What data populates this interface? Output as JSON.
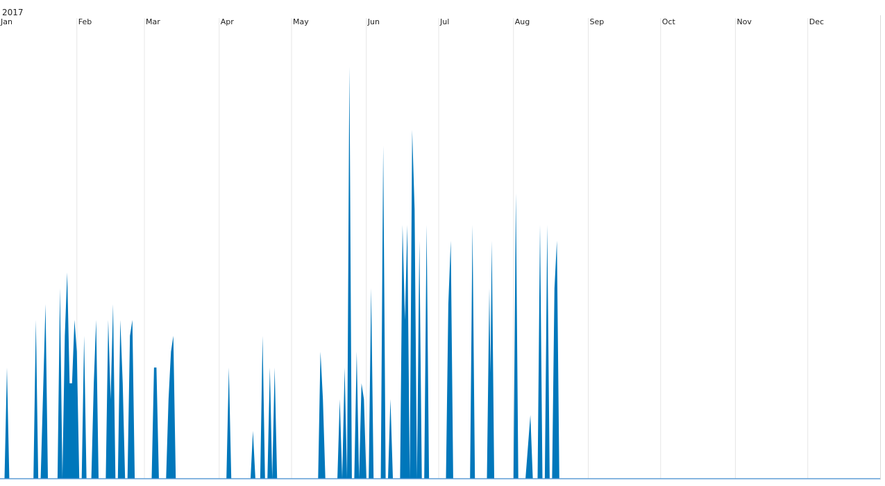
{
  "chart_data": {
    "type": "area",
    "title": "",
    "xlabel": "",
    "ylabel": "",
    "year_label": "2017",
    "x_tick_labels": [
      "Jan",
      "Feb",
      "Mar",
      "Apr",
      "May",
      "Jun",
      "Jul",
      "Aug",
      "Sep",
      "Oct",
      "Nov",
      "Dec"
    ],
    "x_range": [
      "2017-01-01",
      "2017-12-31"
    ],
    "ylim": [
      0,
      26
    ],
    "grid": "vertical-monthly",
    "legend": "none",
    "series": [
      {
        "color": "#0077bb",
        "points": [
          [
            "2017-01-02",
            0
          ],
          [
            "2017-01-03",
            7
          ],
          [
            "2017-01-04",
            0
          ],
          [
            "2017-01-14",
            0
          ],
          [
            "2017-01-15",
            10
          ],
          [
            "2017-01-16",
            0
          ],
          [
            "2017-01-17",
            0
          ],
          [
            "2017-01-19",
            11
          ],
          [
            "2017-01-20",
            0
          ],
          [
            "2017-01-24",
            0
          ],
          [
            "2017-01-25",
            12
          ],
          [
            "2017-01-26",
            0
          ],
          [
            "2017-01-26",
            0
          ],
          [
            "2017-01-27",
            9
          ],
          [
            "2017-01-28",
            13
          ],
          [
            "2017-01-29",
            6
          ],
          [
            "2017-01-30",
            6
          ],
          [
            "2017-01-31",
            10
          ],
          [
            "2017-02-01",
            8
          ],
          [
            "2017-02-02",
            0
          ],
          [
            "2017-02-03",
            0
          ],
          [
            "2017-02-04",
            9
          ],
          [
            "2017-02-05",
            0
          ],
          [
            "2017-02-07",
            0
          ],
          [
            "2017-02-08",
            6
          ],
          [
            "2017-02-09",
            10
          ],
          [
            "2017-02-10",
            0
          ],
          [
            "2017-02-13",
            0
          ],
          [
            "2017-02-14",
            10
          ],
          [
            "2017-02-15",
            5
          ],
          [
            "2017-02-16",
            11
          ],
          [
            "2017-02-17",
            0
          ],
          [
            "2017-02-18",
            0
          ],
          [
            "2017-02-19",
            10
          ],
          [
            "2017-02-20",
            6
          ],
          [
            "2017-02-21",
            0
          ],
          [
            "2017-02-22",
            0
          ],
          [
            "2017-02-23",
            9
          ],
          [
            "2017-02-24",
            10
          ],
          [
            "2017-02-25",
            0
          ],
          [
            "2017-03-04",
            0
          ],
          [
            "2017-03-05",
            7
          ],
          [
            "2017-03-06",
            7
          ],
          [
            "2017-03-07",
            0
          ],
          [
            "2017-03-10",
            0
          ],
          [
            "2017-03-11",
            5
          ],
          [
            "2017-03-12",
            8
          ],
          [
            "2017-03-13",
            9
          ],
          [
            "2017-03-14",
            0
          ],
          [
            "2017-04-04",
            0
          ],
          [
            "2017-04-05",
            7
          ],
          [
            "2017-04-06",
            0
          ],
          [
            "2017-04-14",
            0
          ],
          [
            "2017-04-15",
            3
          ],
          [
            "2017-04-16",
            0
          ],
          [
            "2017-04-18",
            0
          ],
          [
            "2017-04-19",
            9
          ],
          [
            "2017-04-20",
            0
          ],
          [
            "2017-04-21",
            0
          ],
          [
            "2017-04-22",
            7
          ],
          [
            "2017-04-23",
            0
          ],
          [
            "2017-04-23",
            0
          ],
          [
            "2017-04-24",
            7
          ],
          [
            "2017-04-25",
            0
          ],
          [
            "2017-05-12",
            0
          ],
          [
            "2017-05-13",
            8
          ],
          [
            "2017-05-14",
            5
          ],
          [
            "2017-05-15",
            0
          ],
          [
            "2017-05-20",
            0
          ],
          [
            "2017-05-21",
            5
          ],
          [
            "2017-05-22",
            0
          ],
          [
            "2017-05-22",
            0
          ],
          [
            "2017-05-23",
            7
          ],
          [
            "2017-05-24",
            0
          ],
          [
            "2017-05-24",
            0
          ],
          [
            "2017-05-25",
            26
          ],
          [
            "2017-05-26",
            0
          ],
          [
            "2017-05-27",
            0
          ],
          [
            "2017-05-28",
            8
          ],
          [
            "2017-05-29",
            0
          ],
          [
            "2017-05-29",
            0
          ],
          [
            "2017-05-30",
            6
          ],
          [
            "2017-05-31",
            5
          ],
          [
            "2017-06-01",
            0
          ],
          [
            "2017-06-02",
            0
          ],
          [
            "2017-06-03",
            12
          ],
          [
            "2017-06-04",
            0
          ],
          [
            "2017-06-07",
            0
          ],
          [
            "2017-06-08",
            21
          ],
          [
            "2017-06-09",
            0
          ],
          [
            "2017-06-10",
            0
          ],
          [
            "2017-06-11",
            5
          ],
          [
            "2017-06-12",
            0
          ],
          [
            "2017-06-15",
            0
          ],
          [
            "2017-06-16",
            16
          ],
          [
            "2017-06-17",
            10
          ],
          [
            "2017-06-18",
            16
          ],
          [
            "2017-06-19",
            0
          ],
          [
            "2017-06-19",
            0
          ],
          [
            "2017-06-20",
            22
          ],
          [
            "2017-06-21",
            17
          ],
          [
            "2017-06-22",
            0
          ],
          [
            "2017-06-22",
            0
          ],
          [
            "2017-06-23",
            15
          ],
          [
            "2017-06-24",
            0
          ],
          [
            "2017-06-25",
            0
          ],
          [
            "2017-06-26",
            16
          ],
          [
            "2017-06-27",
            0
          ],
          [
            "2017-07-04",
            0
          ],
          [
            "2017-07-05",
            11
          ],
          [
            "2017-07-06",
            15
          ],
          [
            "2017-07-07",
            0
          ],
          [
            "2017-07-14",
            0
          ],
          [
            "2017-07-15",
            16
          ],
          [
            "2017-07-16",
            0
          ],
          [
            "2017-07-21",
            0
          ],
          [
            "2017-07-22",
            12
          ],
          [
            "2017-07-23",
            0
          ],
          [
            "2017-07-22",
            0
          ],
          [
            "2017-07-23",
            15
          ],
          [
            "2017-07-24",
            0
          ],
          [
            "2017-08-01",
            0
          ],
          [
            "2017-08-02",
            18
          ],
          [
            "2017-08-03",
            0
          ],
          [
            "2017-08-06",
            0
          ],
          [
            "2017-08-08",
            4
          ],
          [
            "2017-08-09",
            0
          ],
          [
            "2017-08-11",
            0
          ],
          [
            "2017-08-12",
            16
          ],
          [
            "2017-08-13",
            0
          ],
          [
            "2017-08-14",
            0
          ],
          [
            "2017-08-15",
            16
          ],
          [
            "2017-08-16",
            0
          ],
          [
            "2017-08-17",
            0
          ],
          [
            "2017-08-18",
            12
          ],
          [
            "2017-08-19",
            15
          ],
          [
            "2017-08-20",
            0
          ]
        ]
      }
    ]
  }
}
